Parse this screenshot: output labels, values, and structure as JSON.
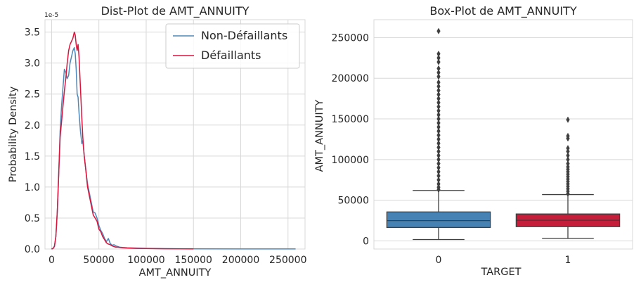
{
  "chart_data": [
    {
      "type": "line",
      "title": "Dist-Plot de AMT_ANNUITY",
      "xlabel": "AMT_ANNUITY",
      "ylabel": "Probability Density",
      "y_offset_label": "1e-5",
      "xlim": [
        -7000,
        268000
      ],
      "ylim": [
        0,
        3.7e-05
      ],
      "xticks": [
        0,
        50000,
        100000,
        150000,
        200000,
        250000
      ],
      "xtick_labels": [
        "0",
        "50000",
        "100000",
        "150000",
        "200000",
        "250000"
      ],
      "yticks": [
        0,
        5e-06,
        1e-05,
        1.5e-05,
        2e-05,
        2.5e-05,
        3e-05,
        3.5e-05
      ],
      "ytick_labels": [
        "0.0",
        "0.5",
        "1.0",
        "1.5",
        "2.0",
        "2.5",
        "3.0",
        "3.5"
      ],
      "grid": true,
      "legend_position": "top-right",
      "series": [
        {
          "name": "Non-Défaillants",
          "color": "#4e87b8",
          "x": [
            0,
            1600,
            3000,
            4500,
            6000,
            7500,
            9000,
            10500,
            12000,
            13500,
            15000,
            16500,
            18000,
            19500,
            21000,
            22500,
            24000,
            25000,
            26000,
            27000,
            28000,
            29000,
            30500,
            32000,
            33000,
            34500,
            36000,
            38000,
            40000,
            42000,
            44000,
            46000,
            48000,
            50000,
            52000,
            54000,
            56000,
            58000,
            60000,
            62000,
            64000,
            66000,
            68000,
            70000,
            72000,
            75000,
            80000,
            90000,
            100000,
            120000,
            150000,
            200000,
            258000
          ],
          "y": [
            0,
            1e-07,
            5e-07,
            2e-06,
            6e-06,
            1.2e-05,
            1.9e-05,
            2.3e-05,
            2.6e-05,
            2.9e-05,
            2.85e-05,
            2.75e-05,
            2.8e-05,
            3e-05,
            3.1e-05,
            3.2e-05,
            3.25e-05,
            3.15e-05,
            2.9e-05,
            2.5e-05,
            2.45e-05,
            2.2e-05,
            1.9e-05,
            1.7e-05,
            1.75e-05,
            1.5e-05,
            1.3e-05,
            1.05e-05,
            9e-06,
            7.5e-06,
            6e-06,
            5.8e-06,
            5e-06,
            3.8e-06,
            3e-06,
            2.5e-06,
            1.7e-06,
            1.2e-06,
            1.7e-06,
            9e-07,
            6e-07,
            7e-07,
            5e-07,
            4e-07,
            3e-07,
            2.5e-07,
            2e-07,
            1.5e-07,
            1e-07,
            5e-08,
            3e-08,
            2e-08,
            1e-08
          ]
        },
        {
          "name": "Défaillants",
          "color": "#dc143c",
          "x": [
            0,
            1600,
            3000,
            4500,
            6000,
            7500,
            9000,
            10500,
            12000,
            13500,
            15000,
            16500,
            18000,
            19500,
            21000,
            22500,
            24000,
            25000,
            26000,
            27000,
            28000,
            29000,
            30500,
            32000,
            33000,
            34500,
            36000,
            38000,
            40000,
            42000,
            44000,
            46000,
            48000,
            50000,
            52000,
            54000,
            56000,
            58000,
            60000,
            62000,
            64000,
            66000,
            68000,
            70000,
            75000,
            80000,
            90000,
            100000,
            120000,
            150000
          ],
          "y": [
            0,
            1e-07,
            4e-07,
            2e-06,
            6e-06,
            1.2e-05,
            1.8e-05,
            2.05e-05,
            2.3e-05,
            2.55e-05,
            2.75e-05,
            3e-05,
            3.2e-05,
            3.3e-05,
            3.35e-05,
            3.4e-05,
            3.5e-05,
            3.45e-05,
            3.3e-05,
            3.2e-05,
            3.3e-05,
            3.1e-05,
            2.6e-05,
            2.1e-05,
            1.8e-05,
            1.5e-05,
            1.3e-05,
            1e-05,
            8.5e-06,
            7e-06,
            5.5e-06,
            5e-06,
            4.5e-06,
            3.2e-06,
            2.8e-06,
            2e-06,
            1.5e-06,
            1e-06,
            8e-07,
            7e-07,
            5e-07,
            4e-07,
            3e-07,
            3e-07,
            2e-07,
            1.5e-07,
            1e-07,
            8e-08,
            4e-08,
            1e-08
          ]
        }
      ]
    },
    {
      "type": "box",
      "title": "Box-Plot de AMT_ANNUITY",
      "xlabel": "TARGET",
      "ylabel": "AMT_ANNUITY",
      "categories": [
        "0",
        "1"
      ],
      "ylim": [
        -10000,
        272000
      ],
      "yticks": [
        0,
        50000,
        100000,
        150000,
        200000,
        250000
      ],
      "ytick_labels": [
        "0",
        "50000",
        "100000",
        "150000",
        "200000",
        "250000"
      ],
      "grid": true,
      "boxes": [
        {
          "category": "0",
          "color": "#4682b4",
          "whisker_low": 1700,
          "q1": 16500,
          "median": 24900,
          "q3": 35600,
          "whisker_high": 62000,
          "outliers": [
            63000,
            66000,
            70000,
            75000,
            80000,
            85000,
            90000,
            95000,
            100000,
            105000,
            110000,
            115000,
            120000,
            125000,
            130000,
            135000,
            140000,
            145000,
            150000,
            155000,
            160000,
            165000,
            170000,
            175000,
            180000,
            185000,
            190000,
            195000,
            202000,
            207000,
            212000,
            220000,
            225000,
            230000,
            258000
          ]
        },
        {
          "category": "1",
          "color": "#c41e3a",
          "whisker_low": 3000,
          "q1": 17500,
          "median": 25300,
          "q3": 33100,
          "whisker_high": 57000,
          "outliers": [
            58000,
            61000,
            64000,
            67000,
            70000,
            73000,
            76000,
            79000,
            82000,
            85000,
            88000,
            91000,
            95000,
            100000,
            105000,
            110000,
            114000,
            126000,
            129000,
            149000
          ]
        }
      ]
    }
  ]
}
